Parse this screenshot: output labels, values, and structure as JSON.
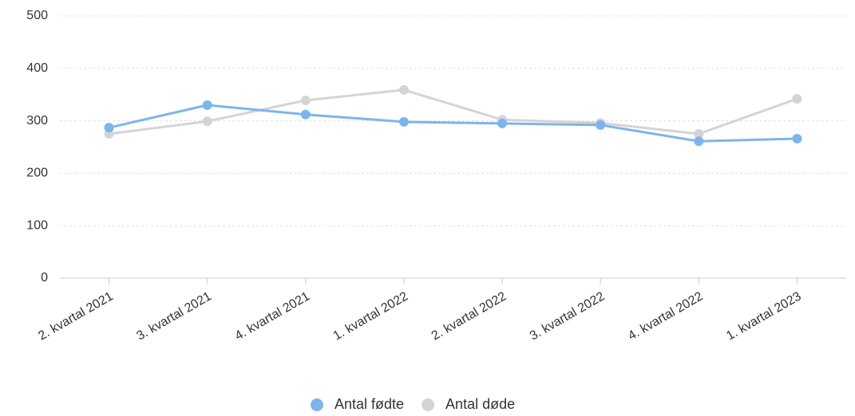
{
  "chart_data": {
    "type": "line",
    "categories": [
      "2. kvartal 2021",
      "3. kvartal 2021",
      "4. kvartal 2021",
      "1. kvartal 2022",
      "2. kvartal 2022",
      "3. kvartal 2022",
      "4. kvartal 2022",
      "1. kvartal 2023"
    ],
    "series": [
      {
        "name": "Antal fødte",
        "color": "#7cb5ec",
        "values": [
          287,
          330,
          312,
          298,
          295,
          292,
          261,
          266
        ]
      },
      {
        "name": "Antal døde",
        "color": "#d4d4d4",
        "values": [
          275,
          299,
          339,
          359,
          302,
          296,
          275,
          342
        ]
      }
    ],
    "ylim": [
      0,
      500
    ],
    "yticks": [
      0,
      100,
      200,
      300,
      400,
      500
    ],
    "grid": true,
    "legend": "bottom"
  }
}
